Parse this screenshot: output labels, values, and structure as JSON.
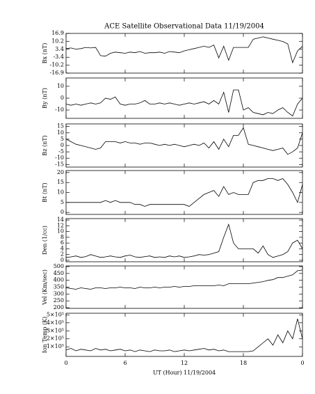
{
  "chart_data": [
    {
      "type": "line",
      "title": "ACE Satellite Observational Data   11/19/2004",
      "ylabel": "Bx (nT)",
      "color": "#000000",
      "x": [
        0,
        0.5,
        1,
        1.5,
        2,
        2.5,
        3,
        3.5,
        4,
        4.5,
        5,
        5.5,
        6,
        6.5,
        7,
        7.5,
        8,
        8.5,
        9,
        9.5,
        10,
        10.5,
        11,
        11.5,
        12,
        12.5,
        13,
        13.5,
        14,
        14.5,
        15,
        15.5,
        16,
        16.5,
        17,
        17.5,
        18,
        18.5,
        19,
        19.5,
        20,
        20.5,
        21,
        21.5,
        22,
        22.5,
        23,
        23.5,
        24
      ],
      "values": [
        4,
        4.5,
        3.5,
        4,
        5,
        4.5,
        5,
        -2,
        -2.5,
        0,
        1,
        0.5,
        0,
        1,
        0.5,
        1.5,
        0,
        0.5,
        0.5,
        1,
        0,
        1.5,
        1,
        0.5,
        2,
        3,
        4,
        5,
        6,
        5,
        7,
        -4,
        6,
        -6,
        5,
        5,
        5,
        5,
        12,
        13,
        14,
        13,
        12,
        11,
        10,
        8,
        -8,
        2,
        6
      ],
      "xlim": [
        0,
        24
      ],
      "xticks": [
        0,
        6,
        12,
        18,
        {
          "value": 24,
          "label": "0"
        }
      ],
      "ylim": [
        -16.9,
        16.9
      ],
      "yticks": [
        16.9,
        10.2,
        3.4,
        -3.4,
        -10.2,
        -16.9
      ]
    },
    {
      "type": "line",
      "ylabel": "By (nT)",
      "color": "#000000",
      "x": [
        0,
        0.5,
        1,
        1.5,
        2,
        2.5,
        3,
        3.5,
        4,
        4.5,
        5,
        5.5,
        6,
        6.5,
        7,
        7.5,
        8,
        8.5,
        9,
        9.5,
        10,
        10.5,
        11,
        11.5,
        12,
        12.5,
        13,
        13.5,
        14,
        14.5,
        15,
        15.5,
        16,
        16.5,
        17,
        17.5,
        18,
        18.5,
        19,
        19.5,
        20,
        20.5,
        21,
        21.5,
        22,
        22.5,
        23,
        23.5,
        24
      ],
      "values": [
        -5,
        -6,
        -5,
        -6,
        -5,
        -4,
        -5,
        -4,
        0,
        -1,
        1,
        -5,
        -6,
        -5,
        -5,
        -4,
        -2,
        -5,
        -5,
        -4,
        -5,
        -4,
        -5,
        -6,
        -5,
        -4,
        -5,
        -4,
        -3,
        -5,
        -2,
        -5,
        5,
        -12,
        7,
        7,
        -10,
        -8,
        -12,
        -13,
        -14,
        -12,
        -13,
        -10,
        -8,
        -12,
        -15,
        -5,
        0
      ],
      "xlim": [
        0,
        24
      ],
      "xticks": [
        0,
        6,
        12,
        18,
        {
          "value": 24,
          "label": "0"
        }
      ],
      "ylim": [
        -17,
        17
      ],
      "yticks": [
        10,
        0,
        -10
      ]
    },
    {
      "type": "line",
      "ylabel": "Bz (nT)",
      "color": "#000000",
      "x": [
        0,
        0.5,
        1,
        1.5,
        2,
        2.5,
        3,
        3.5,
        4,
        4.5,
        5,
        5.5,
        6,
        6.5,
        7,
        7.5,
        8,
        8.5,
        9,
        9.5,
        10,
        10.5,
        11,
        11.5,
        12,
        12.5,
        13,
        13.5,
        14,
        14.5,
        15,
        15.5,
        16,
        16.5,
        17,
        17.5,
        18,
        18.5,
        19,
        19.5,
        20,
        20.5,
        21,
        21.5,
        22,
        22.5,
        23,
        23.5,
        24
      ],
      "values": [
        5,
        3,
        1,
        0,
        -1,
        -2,
        -3,
        -2,
        3,
        3,
        3,
        2,
        3,
        2,
        2,
        1,
        2,
        2,
        1,
        0,
        1,
        0,
        1,
        0,
        -1,
        0,
        1,
        0,
        2,
        -2,
        3,
        -3,
        5,
        -1,
        8,
        8,
        14,
        1,
        0,
        -1,
        -2,
        -3,
        -4,
        -3,
        -2,
        -7,
        -5,
        -2,
        10
      ],
      "xlim": [
        0,
        24
      ],
      "xticks": [
        0,
        6,
        12,
        18,
        {
          "value": 24,
          "label": "0"
        }
      ],
      "ylim": [
        -17,
        17
      ],
      "yticks": [
        15,
        10,
        5,
        0,
        -5,
        -10,
        -15
      ]
    },
    {
      "type": "line",
      "ylabel": "Bt (nT)",
      "color": "#000000",
      "x": [
        0,
        0.5,
        1,
        1.5,
        2,
        2.5,
        3,
        3.5,
        4,
        4.5,
        5,
        5.5,
        6,
        6.5,
        7,
        7.5,
        8,
        8.5,
        9,
        9.5,
        10,
        10.5,
        11,
        11.5,
        12,
        12.5,
        13,
        13.5,
        14,
        14.5,
        15,
        15.5,
        16,
        16.5,
        17,
        17.5,
        18,
        18.5,
        19,
        19.5,
        20,
        20.5,
        21,
        21.5,
        22,
        22.5,
        23,
        23.5,
        24
      ],
      "values": [
        5,
        5,
        5,
        5,
        5,
        5,
        5,
        5,
        6,
        5,
        6,
        5,
        5,
        5,
        4,
        4,
        3,
        4,
        4,
        4,
        4,
        4,
        4,
        4,
        4,
        3,
        5,
        7,
        9,
        10,
        11,
        8,
        13,
        9,
        10,
        9,
        9,
        9,
        15,
        16,
        16,
        17,
        17,
        16,
        17,
        14,
        10,
        5,
        14
      ],
      "xlim": [
        0,
        24
      ],
      "xticks": [
        0,
        6,
        12,
        18,
        {
          "value": 24,
          "label": "0"
        }
      ],
      "ylim": [
        -1,
        21
      ],
      "yticks": [
        20,
        15,
        10,
        5,
        0
      ]
    },
    {
      "type": "line",
      "ylabel": "Den (1/cc)",
      "color": "#000000",
      "x": [
        0,
        0.5,
        1,
        1.5,
        2,
        2.5,
        3,
        3.5,
        4,
        4.5,
        5,
        5.5,
        6,
        6.5,
        7,
        7.5,
        8,
        8.5,
        9,
        9.5,
        10,
        10.5,
        11,
        11.5,
        12,
        12.5,
        13,
        13.5,
        14,
        14.5,
        15,
        15.5,
        16,
        16.5,
        17,
        17.5,
        18,
        18.5,
        19,
        19.5,
        20,
        20.5,
        21,
        21.5,
        22,
        22.5,
        23,
        23.5,
        24
      ],
      "values": [
        1,
        1.2,
        1.5,
        1,
        1.3,
        2,
        1.5,
        1,
        1.2,
        1.5,
        1.2,
        1,
        1.5,
        1.8,
        1.2,
        1,
        1.3,
        1.5,
        1,
        1.2,
        1,
        1.5,
        1.2,
        1.5,
        1,
        1.2,
        1.5,
        2,
        1.8,
        2,
        2.5,
        3,
        8,
        12.5,
        6,
        4,
        4,
        4,
        4,
        2.5,
        5,
        2,
        1,
        1.5,
        2,
        3,
        6,
        7,
        4
      ],
      "xlim": [
        0,
        24
      ],
      "xticks": [
        0,
        6,
        12,
        18,
        {
          "value": 24,
          "label": "0"
        }
      ],
      "ylim": [
        -0.5,
        14.5
      ],
      "yticks": [
        14,
        12,
        10,
        8,
        6,
        4,
        2,
        0
      ]
    },
    {
      "type": "line",
      "ylabel": "Vel (Km/sec)",
      "color": "#000000",
      "x": [
        0,
        0.5,
        1,
        1.5,
        2,
        2.5,
        3,
        3.5,
        4,
        4.5,
        5,
        5.5,
        6,
        6.5,
        7,
        7.5,
        8,
        8.5,
        9,
        9.5,
        10,
        10.5,
        11,
        11.5,
        12,
        12.5,
        13,
        13.5,
        14,
        14.5,
        15,
        15.5,
        16,
        16.5,
        17,
        17.5,
        18,
        18.5,
        19,
        19.5,
        20,
        20.5,
        21,
        21.5,
        22,
        22.5,
        23,
        23.5,
        24
      ],
      "values": [
        345,
        340,
        335,
        345,
        340,
        335,
        345,
        345,
        340,
        345,
        345,
        350,
        345,
        345,
        340,
        350,
        345,
        345,
        350,
        345,
        350,
        350,
        355,
        350,
        355,
        355,
        360,
        360,
        360,
        360,
        360,
        365,
        360,
        375,
        375,
        375,
        375,
        375,
        380,
        385,
        390,
        400,
        405,
        420,
        420,
        430,
        440,
        470,
        475
      ],
      "xlim": [
        0,
        24
      ],
      "xticks": [
        0,
        6,
        12,
        18,
        {
          "value": 24,
          "label": "0"
        }
      ],
      "ylim": [
        195,
        505
      ],
      "yticks": [
        500,
        450,
        400,
        350,
        300,
        250,
        200
      ]
    },
    {
      "type": "line",
      "ylabel": "Ion Temp (K)",
      "xlabel": "UT (Hour)  11/19/2004",
      "color": "#000000",
      "x": [
        0,
        0.5,
        1,
        1.5,
        2,
        2.5,
        3,
        3.5,
        4,
        4.5,
        5,
        5.5,
        6,
        6.5,
        7,
        7.5,
        8,
        8.5,
        9,
        9.5,
        10,
        10.5,
        11,
        11.5,
        12,
        12.5,
        13,
        13.5,
        14,
        14.5,
        15,
        15.5,
        16,
        16.5,
        17,
        17.5,
        18,
        18.5,
        19,
        19.5,
        20,
        20.5,
        21,
        21.5,
        22,
        22.5,
        23,
        23.5,
        24
      ],
      "values": [
        60000,
        80000,
        50000,
        70000,
        60000,
        50000,
        80000,
        60000,
        70000,
        50000,
        60000,
        70000,
        50000,
        60000,
        40000,
        60000,
        50000,
        40000,
        60000,
        50000,
        50000,
        60000,
        40000,
        50000,
        60000,
        50000,
        60000,
        70000,
        80000,
        60000,
        70000,
        50000,
        60000,
        40000,
        40000,
        40000,
        40000,
        40000,
        50000,
        100000,
        150000,
        200000,
        120000,
        250000,
        150000,
        300000,
        200000,
        450000,
        200000
      ],
      "xlim": [
        0,
        24
      ],
      "xticks": [
        0,
        6,
        12,
        18,
        {
          "value": 24,
          "label": "0"
        }
      ],
      "ylim": [
        -20000,
        520000
      ],
      "yticks": [
        {
          "value": 500000,
          "label": "5×10⁵"
        },
        {
          "value": 400000,
          "label": "4×10⁵"
        },
        {
          "value": 300000,
          "label": "3×10⁵"
        },
        {
          "value": 200000,
          "label": "2×10⁵"
        },
        {
          "value": 100000,
          "label": "1×10⁵"
        }
      ]
    }
  ]
}
